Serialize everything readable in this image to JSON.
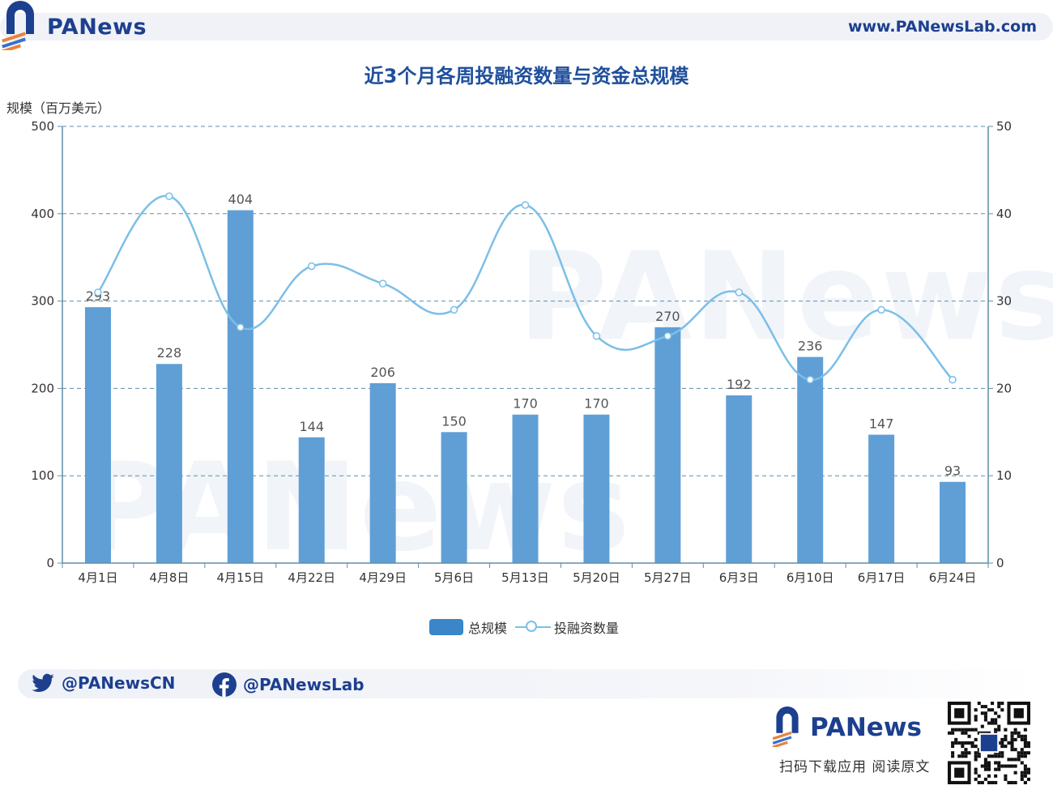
{
  "header": {
    "brand": "PANews",
    "url": "www.PANewsLab.com"
  },
  "watermark": "PANews",
  "chart_data": {
    "type": "bar",
    "title": "近3个月各周投融资数量与资金总规模",
    "ylabel": "规模（百万美元）",
    "ylim": [
      0,
      500
    ],
    "y2lim": [
      0,
      50
    ],
    "yticks": [
      "0",
      "100",
      "200",
      "300",
      "400",
      "500"
    ],
    "y2ticks": [
      "0",
      "10",
      "20",
      "30",
      "40",
      "50"
    ],
    "grid": true,
    "legend_position": "bottom-center",
    "categories": [
      "4月1日",
      "4月8日",
      "4月15日",
      "4月22日",
      "4月29日",
      "5月6日",
      "5月13日",
      "5月20日",
      "5月27日",
      "6月3日",
      "6月10日",
      "6月17日",
      "6月24日"
    ],
    "series": [
      {
        "name": "总规模",
        "type": "bar",
        "axis": "left",
        "color": "#3a86c8",
        "values": [
          293,
          228,
          404,
          144,
          206,
          150,
          170,
          170,
          270,
          192,
          236,
          147,
          93
        ],
        "labels": [
          "293",
          "228",
          "404",
          "144",
          "206",
          "150",
          "170",
          "170",
          "270",
          "192",
          "236",
          "147",
          "93"
        ]
      },
      {
        "name": "投融资数量",
        "type": "line",
        "axis": "right",
        "smooth": true,
        "color": "#7bbfe8",
        "values": [
          31,
          42,
          27,
          34,
          32,
          29,
          41,
          26,
          26,
          31,
          21,
          29,
          21
        ]
      }
    ]
  },
  "footer": {
    "twitter": "@PANewsCN",
    "facebook": "@PANewsLab",
    "brand": "PANews",
    "app_caption": "扫码下载应用  阅读原文"
  }
}
